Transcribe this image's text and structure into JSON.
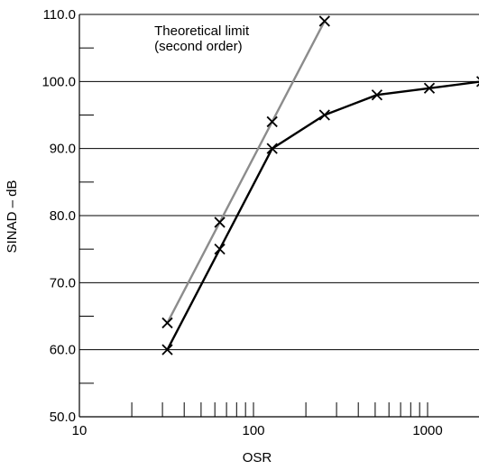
{
  "chart_data": {
    "type": "line",
    "title": "",
    "xlabel": "OSR",
    "ylabel": "SINAD – dB",
    "x_scale": "log",
    "xlim": [
      10,
      2000
    ],
    "ylim": [
      50,
      110
    ],
    "x_tick_labels": [
      "10",
      "100",
      "1000"
    ],
    "y_tick_labels": [
      "50.0",
      "60.0",
      "70.0",
      "80.0",
      "90.0",
      "100.0",
      "110.0"
    ],
    "y_ticks": [
      50,
      60,
      70,
      80,
      90,
      100,
      110
    ],
    "grid": "horizontal",
    "series": [
      {
        "name": "",
        "color": "#000000",
        "marker": "x",
        "points": [
          [
            32,
            60
          ],
          [
            64,
            75
          ],
          [
            128,
            90
          ],
          [
            256,
            95
          ],
          [
            512,
            98
          ],
          [
            1024,
            99
          ],
          [
            2048,
            100
          ]
        ]
      },
      {
        "name": "Theoretical limit (second order)",
        "color": "#8c8c8c",
        "marker": "x",
        "points": [
          [
            32,
            64
          ],
          [
            64,
            79
          ],
          [
            128,
            94
          ],
          [
            256,
            109
          ]
        ]
      }
    ],
    "annotations": [
      {
        "text": [
          "Theoretical limit",
          "(second order)"
        ],
        "anchor_x": 70,
        "anchor_y": 106.9
      }
    ]
  }
}
